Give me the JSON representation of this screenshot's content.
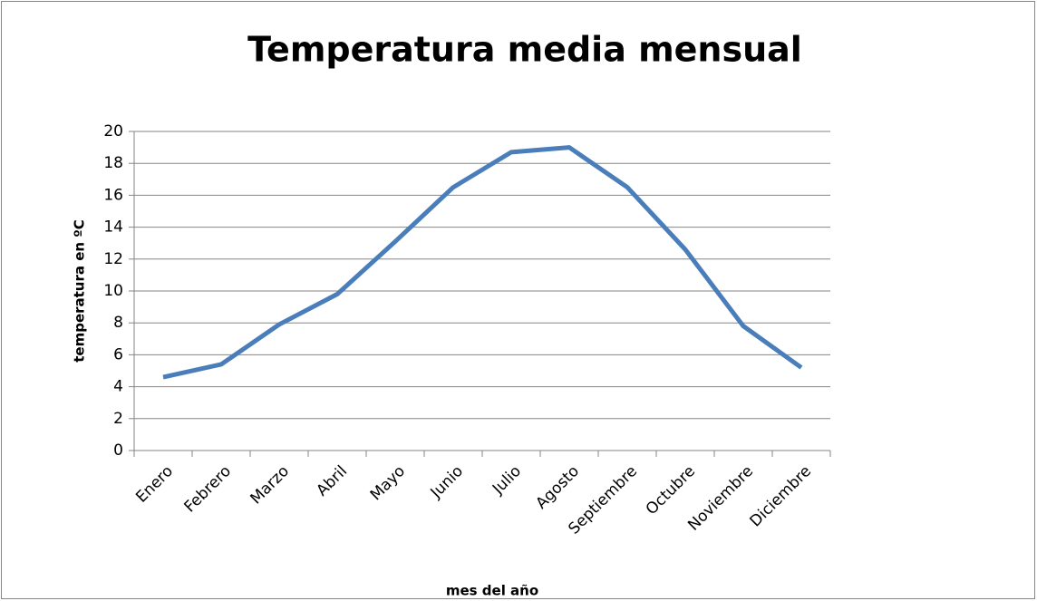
{
  "chart_data": {
    "type": "line",
    "title": "Temperatura media mensual",
    "x_label": "mes del año",
    "y_label": "temperatura en ºC",
    "categories": [
      "Enero",
      "Febrero",
      "Marzo",
      "Abril",
      "Mayo",
      "Junio",
      "Julio",
      "Agosto",
      "Septiembre",
      "Octubre",
      "Noviembre",
      "Diciembre"
    ],
    "values": [
      4.6,
      5.4,
      7.9,
      9.8,
      13.1,
      16.5,
      18.7,
      19.0,
      16.5,
      12.6,
      7.8,
      5.2
    ],
    "color": "#4a7ebb",
    "ylim": [
      0,
      20
    ],
    "yticks": [
      0,
      2,
      4,
      6,
      8,
      10,
      12,
      14,
      16,
      18,
      20
    ],
    "grid": true
  }
}
